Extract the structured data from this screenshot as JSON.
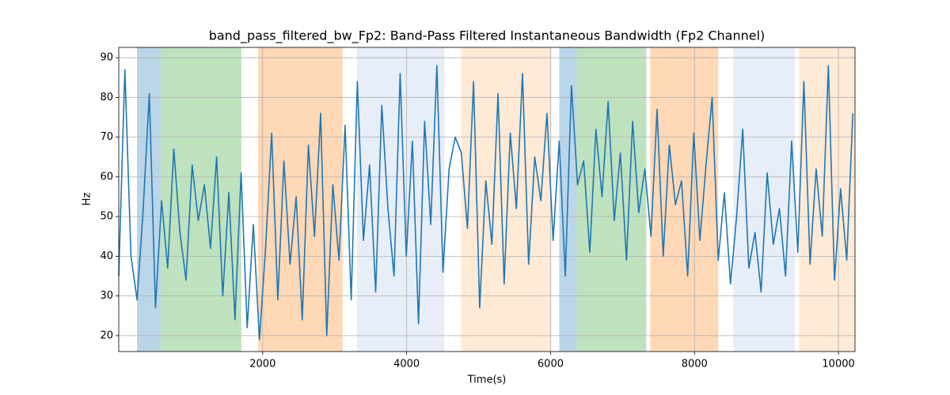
{
  "chart_data": {
    "type": "line",
    "title": "band_pass_filtered_bw_Fp2: Band-Pass Filtered Instantaneous Bandwidth (Fp2 Channel)",
    "xlabel": "Time(s)",
    "ylabel": "Hz",
    "color": "#1f77b4",
    "grid": true,
    "xlim": [
      0,
      10230
    ],
    "ylim": [
      16,
      92.6
    ],
    "xticks": [
      2000,
      4000,
      6000,
      8000,
      10000
    ],
    "yticks": [
      20,
      30,
      40,
      50,
      60,
      70,
      80,
      90
    ],
    "spans": [
      {
        "start": 253,
        "end": 582,
        "color": "#1f77b4",
        "alpha": 0.3
      },
      {
        "start": 582,
        "end": 1703,
        "color": "#2ca02c",
        "alpha": 0.3
      },
      {
        "start": 1934,
        "end": 3110,
        "color": "#ff7f0e",
        "alpha": 0.3
      },
      {
        "start": 3308,
        "end": 4527,
        "color": "#aec7e8",
        "alpha": 0.3
      },
      {
        "start": 4758,
        "end": 6011,
        "color": "#ffbb78",
        "alpha": 0.3
      },
      {
        "start": 6121,
        "end": 6363,
        "color": "#1f77b4",
        "alpha": 0.3
      },
      {
        "start": 6363,
        "end": 7330,
        "color": "#2ca02c",
        "alpha": 0.3
      },
      {
        "start": 7385,
        "end": 8330,
        "color": "#ff7f0e",
        "alpha": 0.3
      },
      {
        "start": 8538,
        "end": 9396,
        "color": "#aec7e8",
        "alpha": 0.3
      },
      {
        "start": 9451,
        "end": 10230,
        "color": "#ffbb78",
        "alpha": 0.3
      }
    ],
    "x": [
      0,
      85,
      170,
      255,
      340,
      425,
      510,
      595,
      680,
      765,
      850,
      935,
      1020,
      1105,
      1190,
      1275,
      1360,
      1445,
      1530,
      1615,
      1700,
      1785,
      1870,
      1955,
      2040,
      2125,
      2210,
      2295,
      2380,
      2465,
      2550,
      2635,
      2720,
      2805,
      2890,
      2975,
      3060,
      3145,
      3230,
      3315,
      3400,
      3485,
      3570,
      3655,
      3740,
      3825,
      3910,
      3995,
      4080,
      4165,
      4250,
      4335,
      4420,
      4505,
      4590,
      4675,
      4760,
      4845,
      4930,
      5015,
      5100,
      5185,
      5270,
      5355,
      5440,
      5525,
      5610,
      5695,
      5780,
      5865,
      5950,
      6035,
      6120,
      6205,
      6290,
      6375,
      6460,
      6545,
      6630,
      6715,
      6800,
      6885,
      6970,
      7055,
      7140,
      7225,
      7310,
      7395,
      7480,
      7565,
      7650,
      7735,
      7820,
      7905,
      7990,
      8075,
      8160,
      8245,
      8330,
      8415,
      8500,
      8585,
      8670,
      8755,
      8840,
      8925,
      9010,
      9095,
      9180,
      9265,
      9350,
      9435,
      9520,
      9605,
      9690,
      9775,
      9860,
      9945,
      10030,
      10115,
      10200
    ],
    "values": [
      35,
      87,
      40,
      29,
      52,
      81,
      27,
      54,
      37,
      67,
      46,
      34,
      63,
      49,
      58,
      42,
      65,
      30,
      56,
      24,
      61,
      22,
      48,
      19,
      42,
      71,
      29,
      64,
      38,
      55,
      24,
      68,
      45,
      76,
      20,
      58,
      39,
      73,
      29,
      84,
      44,
      63,
      31,
      78,
      52,
      35,
      86,
      40,
      69,
      23,
      74,
      48,
      88,
      36,
      62,
      70,
      66,
      47,
      84,
      27,
      59,
      43,
      81,
      33,
      71,
      52,
      86,
      38,
      65,
      54,
      76,
      44,
      69,
      35,
      83,
      58,
      64,
      41,
      72,
      55,
      79,
      49,
      66,
      39,
      74,
      51,
      62,
      45,
      77,
      40,
      68,
      53,
      59,
      35,
      71,
      44,
      63,
      80,
      39,
      56,
      33,
      50,
      72,
      37,
      46,
      31,
      61,
      43,
      52,
      35,
      69,
      41,
      84,
      38,
      62,
      45,
      88,
      34,
      57,
      39,
      76
    ]
  }
}
